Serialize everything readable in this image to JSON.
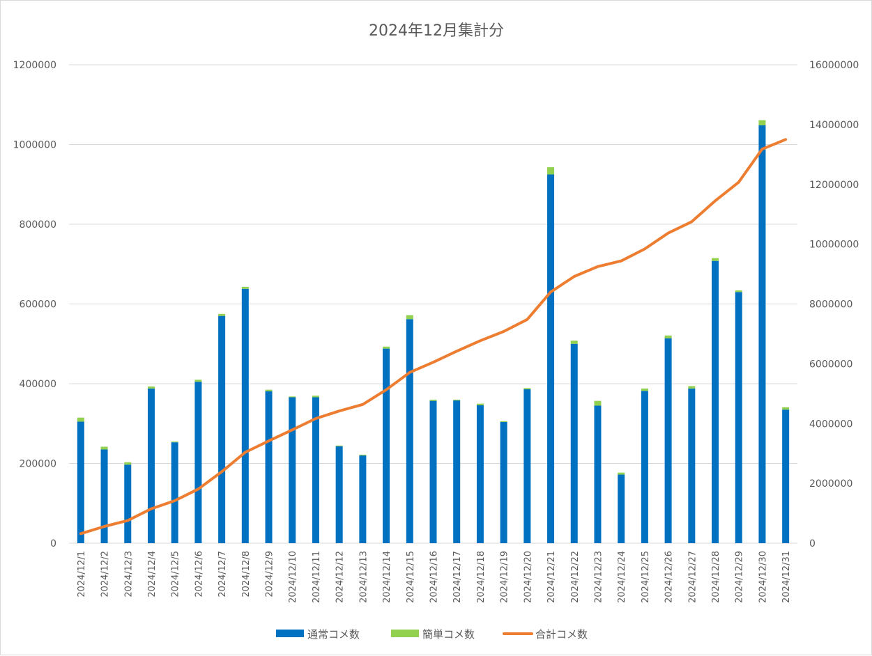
{
  "chart_data": {
    "type": "bar",
    "title": "2024年12月集計分",
    "categories": [
      "2024/12/1",
      "2024/12/2",
      "2024/12/3",
      "2024/12/4",
      "2024/12/5",
      "2024/12/6",
      "2024/12/7",
      "2024/12/8",
      "2024/12/9",
      "2024/12/10",
      "2024/12/11",
      "2024/12/12",
      "2024/12/13",
      "2024/12/14",
      "2024/12/15",
      "2024/12/16",
      "2024/12/17",
      "2024/12/18",
      "2024/12/19",
      "2024/12/20",
      "2024/12/21",
      "2024/12/22",
      "2024/12/23",
      "2024/12/24",
      "2024/12/25",
      "2024/12/26",
      "2024/12/27",
      "2024/12/28",
      "2024/12/29",
      "2024/12/30",
      "2024/12/31"
    ],
    "series": [
      {
        "name": "通常コメ数",
        "type": "bar",
        "stack": "comments",
        "axis": "left",
        "color": "#0070C0",
        "values": [
          305000,
          235000,
          197000,
          388000,
          253000,
          405000,
          570000,
          638000,
          381000,
          366000,
          366000,
          243000,
          220000,
          488000,
          562000,
          357000,
          358000,
          346000,
          304000,
          386000,
          925000,
          500000,
          345000,
          172000,
          382000,
          514000,
          388000,
          708000,
          630000,
          1048000,
          335000
        ]
      },
      {
        "name": "簡単コメ数",
        "type": "bar",
        "stack": "comments",
        "axis": "left",
        "color": "#92D050",
        "values": [
          10000,
          7000,
          6000,
          5000,
          2000,
          5000,
          5000,
          5000,
          4000,
          2000,
          4000,
          2000,
          2000,
          5000,
          10000,
          3000,
          2000,
          4000,
          2000,
          3000,
          18000,
          8000,
          12000,
          5000,
          6000,
          7000,
          6000,
          7000,
          4000,
          13000,
          6000
        ]
      },
      {
        "name": "合計コメ数",
        "type": "line",
        "axis": "right",
        "color": "#ED7D31",
        "values": [
          320000,
          560000,
          760000,
          1150000,
          1420000,
          1810000,
          2390000,
          3040000,
          3420000,
          3790000,
          4170000,
          4420000,
          4640000,
          5130000,
          5710000,
          6050000,
          6420000,
          6770000,
          7080000,
          7480000,
          8400000,
          8920000,
          9250000,
          9440000,
          9840000,
          10370000,
          10750000,
          11450000,
          12070000,
          13180000,
          13500000
        ]
      }
    ],
    "y_left": {
      "min": 0,
      "max": 1200000,
      "ticks": [
        "0",
        "200000",
        "400000",
        "600000",
        "800000",
        "1000000",
        "1200000"
      ]
    },
    "y_right": {
      "min": 0,
      "max": 16000000,
      "ticks": [
        "0",
        "2000000",
        "4000000",
        "6000000",
        "8000000",
        "10000000",
        "12000000",
        "14000000",
        "16000000"
      ]
    },
    "grid": true,
    "legend": "bottom"
  }
}
